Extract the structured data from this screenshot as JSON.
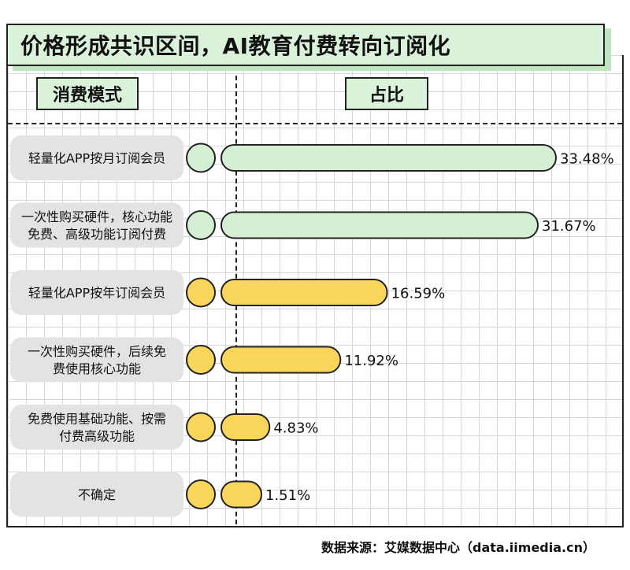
{
  "title": "价格形成共识区间，AI教育付费转向订阅化",
  "headers": {
    "mode": "消费模式",
    "share": "占比"
  },
  "source": "数据来源：艾媒数据中心（data.iimedia.cn）",
  "colors": {
    "green": "#d4efd4",
    "yellow": "#fad55c",
    "label_bg": "#e3e3e3",
    "stroke": "#222222"
  },
  "chart_data": {
    "type": "bar",
    "orientation": "horizontal",
    "title": "价格形成共识区间，AI教育付费转向订阅化",
    "xlabel": "占比",
    "ylabel": "消费模式",
    "unit": "%",
    "categories": [
      "轻量化APP按月订阅会员",
      "一次性购买硬件，核心功能免费、高级功能订阅付费",
      "轻量化APP按年订阅会员",
      "一次性购买硬件，后续免费使用核心功能",
      "免费使用基础功能、按需付费高级功能",
      "不确定"
    ],
    "category_lines": [
      [
        "轻量化APP按月订阅会员"
      ],
      [
        "一次性购买硬件，核心功能",
        "免费、高级功能订阅付费"
      ],
      [
        "轻量化APP按年订阅会员"
      ],
      [
        "一次性购买硬件，后续免",
        "费使用核心功能"
      ],
      [
        "免费使用基础功能、按需",
        "付费高级功能"
      ],
      [
        "不确定"
      ]
    ],
    "values": [
      33.48,
      31.67,
      16.59,
      11.92,
      4.83,
      1.51
    ],
    "value_labels": [
      "33.48%",
      "31.67%",
      "16.59%",
      "11.92%",
      "4.83%",
      "1.51%"
    ],
    "bar_colors": [
      "green",
      "green",
      "yellow",
      "yellow",
      "yellow",
      "yellow"
    ],
    "xlim": [
      0,
      33.48
    ],
    "grid": true
  }
}
